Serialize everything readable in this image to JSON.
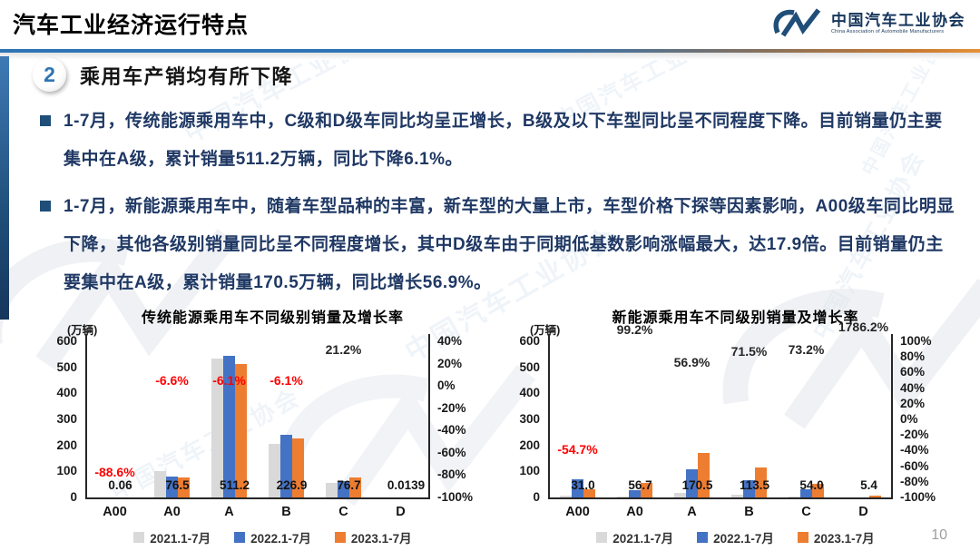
{
  "header": {
    "title": "汽车工业经济运行特点",
    "logo": {
      "org_cn": "中国汽车工业协会",
      "org_en": "China Association of Automobile Manufacturers"
    }
  },
  "section": {
    "number": "2",
    "title": "乘用车产销均有所下降"
  },
  "bullets": [
    {
      "text": "1-7月，传统能源乘用车中，C级和D级车同比均呈正增长，B级及以下车型同比呈不同程度下降。目前销量仍主要集中在A级，累计销量511.2万辆，同比下降6.1%。"
    },
    {
      "text": "1-7月，新能源乘用车中，随着车型品种的丰富，新车型的大量上市，车型价格下探等因素影响，A00级车同比明显下降，其他各级别销量同比呈不同程度增长，其中D级车由于同期低基数影响涨幅最大，达17.9倍。目前销量仍主要集中在A级，累计销量170.5万辆，同比增长56.9%。"
    }
  ],
  "watermark": "中国汽车工业协会",
  "page_number": "10",
  "colors": {
    "accent_blue": "#2e74b5",
    "navy_text": "#1f3864",
    "bar_2021": "#d9d9d9",
    "bar_2022": "#4472c4",
    "bar_2023": "#ed7d31",
    "growth_negative": "#ff0000",
    "growth_positive": "#262626"
  },
  "legend": [
    "2021.1-7月",
    "2022.1-7月",
    "2023.1-7月"
  ],
  "chart_data": [
    {
      "type": "bar",
      "title": "传统能源乘用车不同级别销量及增长率",
      "unit_label": "(万辆)",
      "categories": [
        "A00",
        "A0",
        "A",
        "B",
        "C",
        "D"
      ],
      "series": [
        {
          "name": "2021.1-7月",
          "color": "#d9d9d9",
          "values": [
            0.5,
            100,
            535,
            207,
            57,
            0.05
          ]
        },
        {
          "name": "2022.1-7月",
          "color": "#4472c4",
          "values": [
            0.53,
            81.9,
            544.4,
            241.6,
            63.3,
            0.01
          ]
        },
        {
          "name": "2023.1-7月",
          "color": "#ed7d31",
          "values": [
            0.06,
            76.5,
            511.2,
            226.9,
            76.7,
            0.0139
          ]
        }
      ],
      "value_labels": [
        "0.06",
        "76.5",
        "511.2",
        "226.9",
        "76.7",
        "0.0139"
      ],
      "growth_labels": [
        {
          "text": "-88.6%",
          "value": -88.6,
          "color": "#ff0000"
        },
        {
          "text": "-6.6%",
          "value": -6.6,
          "color": "#ff0000"
        },
        {
          "text": "-6.1%",
          "value": -6.1,
          "color": "#ff0000"
        },
        {
          "text": "-6.1%",
          "value": -6.1,
          "color": "#ff0000"
        },
        {
          "text": "21.2%",
          "value": 21.2,
          "color": "#262626"
        },
        null
      ],
      "left_axis": {
        "ticks": [
          "600",
          "500",
          "400",
          "300",
          "200",
          "100",
          "0"
        ],
        "max": 600,
        "min": 0
      },
      "right_axis": {
        "ticks": [
          "40%",
          "20%",
          "0%",
          "-20%",
          "-40%",
          "-60%",
          "-80%",
          "-100%"
        ],
        "max": 40,
        "min": -100
      },
      "grid": false,
      "legend_position": "bottom"
    },
    {
      "type": "bar",
      "title": "新能源乘用车不同级别销量及增长率",
      "unit_label": "(万辆)",
      "categories": [
        "A00",
        "A0",
        "A",
        "B",
        "C",
        "D"
      ],
      "series": [
        {
          "name": "2021.1-7月",
          "color": "#d9d9d9",
          "values": [
            8,
            2.2,
            16,
            12,
            2,
            0.05
          ]
        },
        {
          "name": "2022.1-7月",
          "color": "#4472c4",
          "values": [
            68.4,
            28.5,
            108.7,
            66.2,
            31.2,
            0.29
          ]
        },
        {
          "name": "2023.1-7月",
          "color": "#ed7d31",
          "values": [
            31.0,
            56.7,
            170.5,
            113.5,
            54.0,
            5.4
          ]
        }
      ],
      "value_labels": [
        "31.0",
        "56.7",
        "170.5",
        "113.5",
        "54.0",
        "5.4"
      ],
      "growth_labels": [
        {
          "text": "-54.7%",
          "value": -54.7,
          "color": "#ff0000"
        },
        {
          "text": "99.2%",
          "value": 99.2,
          "color": "#262626"
        },
        {
          "text": "56.9%",
          "value": 56.9,
          "color": "#262626"
        },
        {
          "text": "71.5%",
          "value": 71.5,
          "color": "#262626"
        },
        {
          "text": "73.2%",
          "value": 73.2,
          "color": "#262626"
        },
        {
          "text": "1786.2%",
          "value": 1786.2,
          "color": "#262626"
        }
      ],
      "left_axis": {
        "ticks": [
          "600",
          "500",
          "400",
          "300",
          "200",
          "100",
          "0"
        ],
        "max": 600,
        "min": 0
      },
      "right_axis": {
        "ticks": [
          "100%",
          "80%",
          "60%",
          "40%",
          "20%",
          "0%",
          "-20%",
          "-40%",
          "-60%",
          "-80%",
          "-100%"
        ],
        "max": 100,
        "min": -100
      },
      "grid": false,
      "legend_position": "bottom"
    }
  ]
}
